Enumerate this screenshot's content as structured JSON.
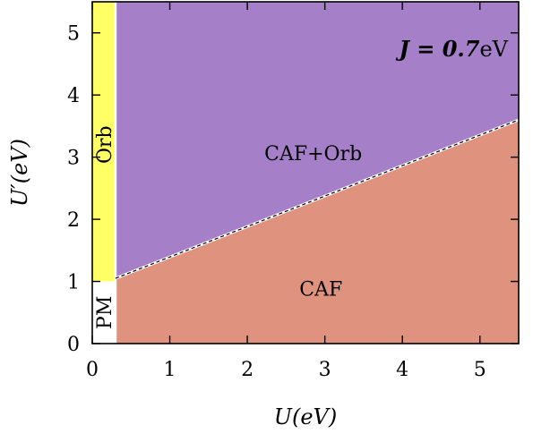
{
  "chart_data": {
    "type": "area",
    "title": "",
    "xlabel": "U(eV)",
    "ylabel": "U′(eV)",
    "xlim": [
      0,
      5.5
    ],
    "ylim": [
      0,
      5.5
    ],
    "x_ticks": [
      "0",
      "1",
      "2",
      "3",
      "4",
      "5"
    ],
    "y_ticks": [
      "0",
      "1",
      "2",
      "3",
      "4",
      "5"
    ],
    "grid": false,
    "annotation": {
      "bold_part": "J = 0.7",
      "unit": "eV"
    },
    "boundaries": {
      "pm_orb_left_edge_x": 0.3,
      "pm_orb_split_y": 1.0,
      "caf_boundary": {
        "x": [
          0.3,
          5.5
        ],
        "y": [
          1.05,
          3.6
        ]
      }
    },
    "regions": [
      {
        "label": "Orb",
        "color": "#ffff66"
      },
      {
        "label": "PM",
        "color": "#ffffff"
      },
      {
        "label": "CAF+Orb",
        "color": "#a57fc8"
      },
      {
        "label": "CAF",
        "color": "#df937f"
      }
    ]
  }
}
